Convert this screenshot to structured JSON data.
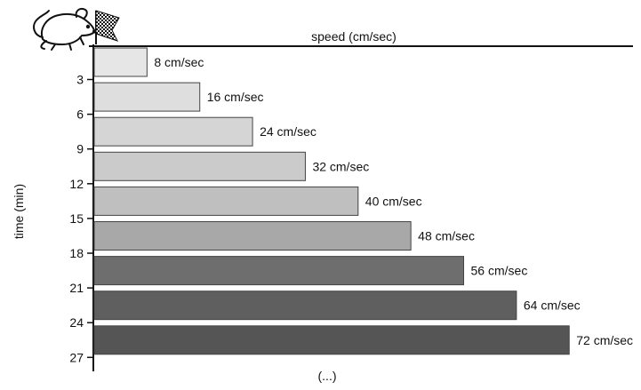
{
  "chart_data": {
    "type": "bar",
    "orientation": "horizontal",
    "categories": [
      "3",
      "6",
      "9",
      "12",
      "15",
      "18",
      "21",
      "24",
      "27"
    ],
    "values": [
      8,
      16,
      24,
      32,
      40,
      48,
      56,
      64,
      72
    ],
    "value_labels": [
      "8 cm/sec",
      "16 cm/sec",
      "24 cm/sec",
      "32 cm/sec",
      "40 cm/sec",
      "48 cm/sec",
      "56 cm/sec",
      "64 cm/sec",
      "72 cm/sec"
    ],
    "bar_colors": [
      "#e6e6e6",
      "#dedede",
      "#d5d5d5",
      "#cbcbcb",
      "#bfbfbf",
      "#a8a8a8",
      "#6e6e6e",
      "#5f5f5f",
      "#555555"
    ],
    "xlabel": "speed (cm/sec)",
    "ylabel": "time (min)",
    "xlim": [
      0,
      72
    ],
    "continuation": "(...)",
    "icons": [
      "mouse-icon",
      "checkered-flag-icon"
    ]
  }
}
